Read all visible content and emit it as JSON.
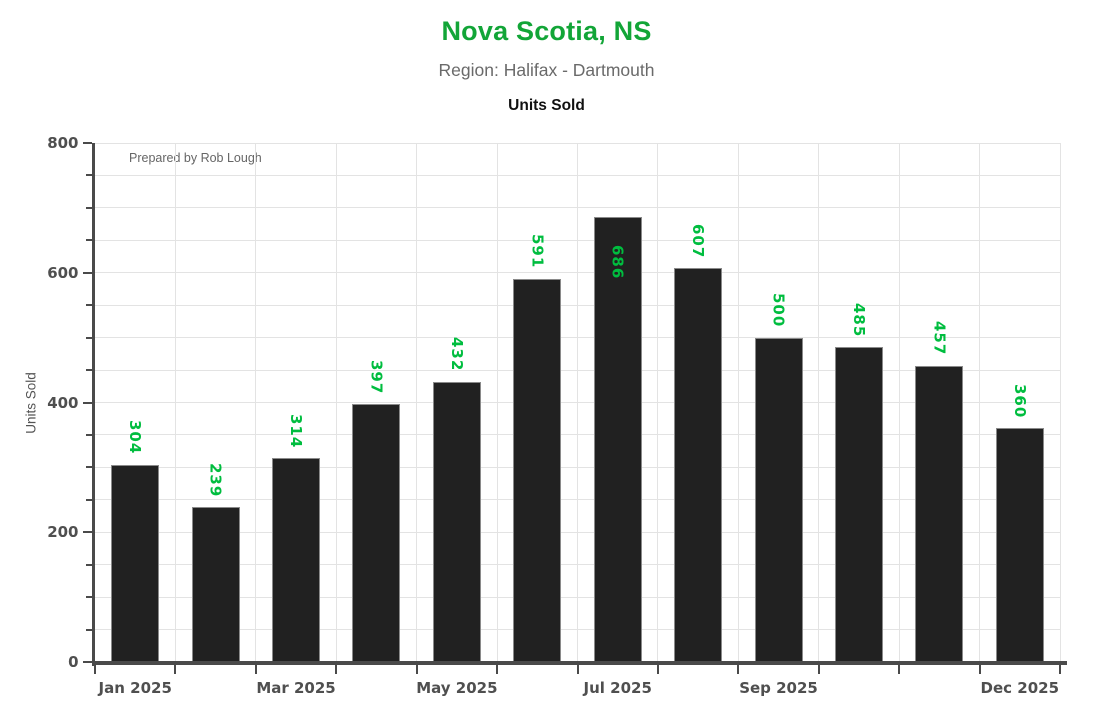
{
  "header": {
    "title": "Nova Scotia, NS",
    "subtitle": "Region: Halifax - Dartmouth",
    "chart_title": "Units Sold"
  },
  "annotation": "Prepared by Rob Lough",
  "chart_data": {
    "type": "bar",
    "title": "Units Sold",
    "ylabel": "Units Sold",
    "ylim": [
      0,
      800
    ],
    "y_major_ticks": [
      0,
      200,
      400,
      600,
      800
    ],
    "y_minor_tick_step": 50,
    "values": [
      304,
      239,
      314,
      397,
      432,
      591,
      686,
      607,
      500,
      485,
      457,
      360
    ],
    "value_labels": [
      "304",
      "239",
      "314",
      "397",
      "432",
      "591",
      "686",
      "607",
      "500",
      "485",
      "457",
      "360"
    ],
    "x_tick_labels": [
      {
        "label": "Jan 2025",
        "bar_index": 0
      },
      {
        "label": "Mar 2025",
        "bar_index": 2
      },
      {
        "label": "May 2025",
        "bar_index": 4
      },
      {
        "label": "Jul 2025",
        "bar_index": 6
      },
      {
        "label": "Sep 2025",
        "bar_index": 8
      },
      {
        "label": "Dec 2025",
        "bar_index": 11
      }
    ],
    "grid": "horizontal every 50 units, vertical at month boundaries",
    "legend": "none",
    "colors": {
      "title_green": "#12a537",
      "value_label_green": "#00bd3f",
      "subtitle_gray": "#6a6a6a",
      "axis_gray": "#4a4a4a",
      "tick_label_gray": "#4f4f4f",
      "bar_fill": "#212121",
      "bar_edge": "#8a8a8a",
      "gridline": "#e3e3e3",
      "annotation_gray": "#666666"
    }
  }
}
